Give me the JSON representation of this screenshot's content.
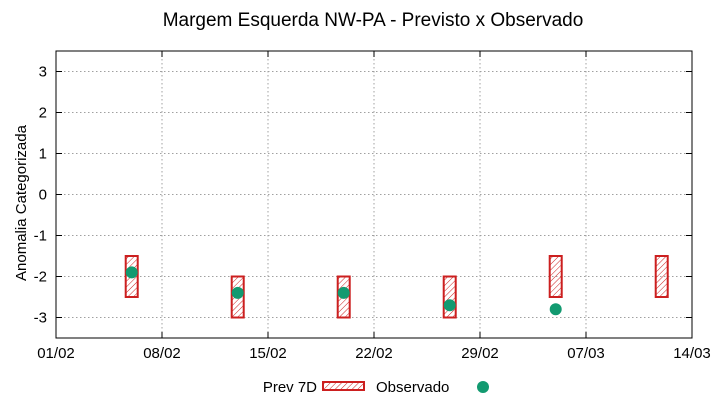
{
  "chart_data": {
    "type": "scatter",
    "title": "Margem Esquerda NW-PA - Previsto x Observado",
    "xlabel": "",
    "ylabel": "Anomalia Categorizada",
    "x_ticks": [
      "01/02",
      "08/02",
      "15/02",
      "22/02",
      "29/02",
      "07/03",
      "14/03"
    ],
    "xlim": [
      "01/02",
      "14/03"
    ],
    "ylim": [
      -3.5,
      3.5
    ],
    "y_ticks": [
      3,
      2,
      1,
      0,
      -1,
      -2,
      -3
    ],
    "grid": true,
    "legend_position": "bottom-center",
    "colors": {
      "forecast": "#cc1f1f",
      "observed": "#129a70",
      "grid": "#a0a0a0"
    },
    "series": [
      {
        "name": "Prev 7D",
        "kind": "hatched-range",
        "points": [
          {
            "x": "06/02",
            "y_low": -2.5,
            "y_high": -1.5
          },
          {
            "x": "13/02",
            "y_low": -3.0,
            "y_high": -2.0
          },
          {
            "x": "20/02",
            "y_low": -3.0,
            "y_high": -2.0
          },
          {
            "x": "27/02",
            "y_low": -3.0,
            "y_high": -2.0
          },
          {
            "x": "05/03",
            "y_low": -2.5,
            "y_high": -1.5
          },
          {
            "x": "12/03",
            "y_low": -2.5,
            "y_high": -1.5
          }
        ]
      },
      {
        "name": "Observado",
        "kind": "points",
        "points": [
          {
            "x": "06/02",
            "y": -1.9
          },
          {
            "x": "13/02",
            "y": -2.4
          },
          {
            "x": "20/02",
            "y": -2.4
          },
          {
            "x": "27/02",
            "y": -2.7
          },
          {
            "x": "05/03",
            "y": -2.8
          }
        ]
      }
    ]
  }
}
